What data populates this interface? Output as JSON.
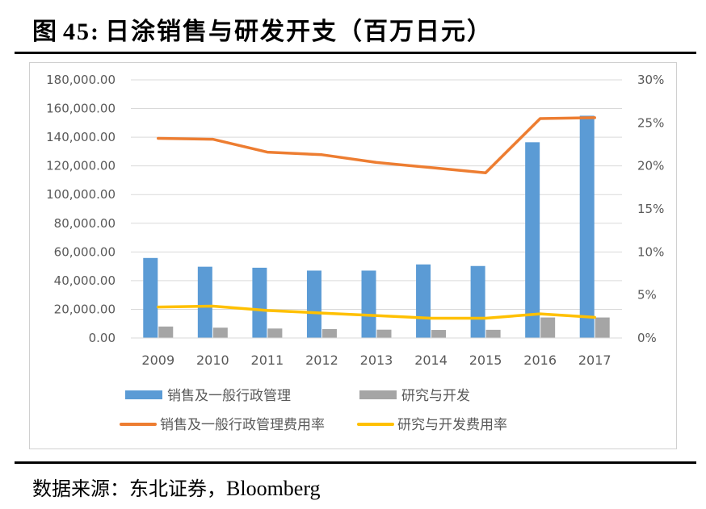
{
  "header": {
    "figure_label": "图",
    "figure_number": "45:",
    "title_text": "日涂销售与研发开支（百万日元）"
  },
  "footer": {
    "source_prefix": "数据来源：东北证券，",
    "source_latin": "Bloomberg"
  },
  "chart_data": {
    "type": "bar",
    "title": "日涂销售与研发开支（百万日元）",
    "categories": [
      "2009",
      "2010",
      "2011",
      "2012",
      "2013",
      "2014",
      "2015",
      "2016",
      "2017"
    ],
    "y_left": {
      "min": 0,
      "max": 180000,
      "step": 20000,
      "tick_labels": [
        "0.00",
        "20,000.00",
        "40,000.00",
        "60,000.00",
        "80,000.00",
        "100,000.00",
        "120,000.00",
        "140,000.00",
        "160,000.00",
        "180,000.00"
      ]
    },
    "y_right": {
      "min": 0,
      "max": 30,
      "step": 5,
      "tick_labels": [
        "0%",
        "5%",
        "10%",
        "15%",
        "20%",
        "25%",
        "30%"
      ]
    },
    "grid": true,
    "legend_position": "bottom",
    "series": [
      {
        "name": "销售及一般行政管理",
        "type": "bar",
        "axis": "left",
        "color": "#5b9bd5",
        "values": [
          55800,
          49700,
          49000,
          47000,
          47000,
          51300,
          50200,
          136500,
          155000
        ]
      },
      {
        "name": "研究与开发",
        "type": "bar",
        "axis": "left",
        "color": "#a5a5a5",
        "values": [
          8000,
          7200,
          6600,
          6200,
          5800,
          5600,
          5700,
          14300,
          14300
        ]
      },
      {
        "name": "销售及一般行政管理费用率",
        "type": "line",
        "axis": "right",
        "color": "#ed7d31",
        "values": [
          23.2,
          23.1,
          21.6,
          21.3,
          20.4,
          19.8,
          19.2,
          25.5,
          25.6
        ]
      },
      {
        "name": "研究与开发费用率",
        "type": "line",
        "axis": "right",
        "color": "#ffc000",
        "values": [
          3.6,
          3.7,
          3.2,
          2.9,
          2.6,
          2.3,
          2.3,
          2.8,
          2.4
        ]
      }
    ]
  }
}
